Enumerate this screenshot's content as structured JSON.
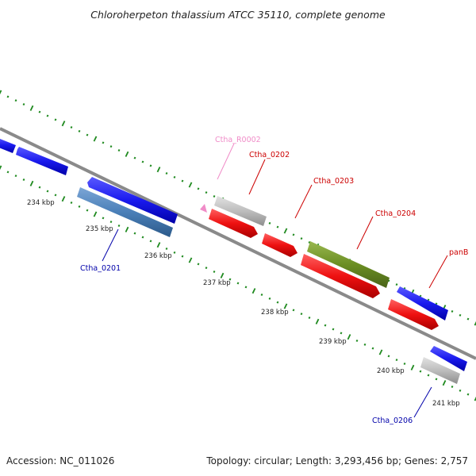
{
  "title": "Chloroherpeton thalassium ATCC 35110, complete genome",
  "footer": {
    "accession": "Accession: NC_011026",
    "summary": "Topology: circular; Length: 3,293,456 bp; Genes: 2,757"
  },
  "colors": {
    "backbone": "#8a8a8a",
    "tick_dots": "#1f8a1f",
    "blue": "#1a1aee",
    "steel_blue": "#4a7fb8",
    "red": "#ee1111",
    "olive": "#6b8e23",
    "gray_gene": "#bdbdbd",
    "pink": "#f08cc8",
    "label_red": "#cc0000",
    "label_blue": "#0000aa",
    "label_pink": "#f08cc8"
  },
  "scale_ticks": [
    "234 kbp",
    "235 kbp",
    "236 kbp",
    "237 kbp",
    "238 kbp",
    "239 kbp",
    "240 kbp",
    "241 kbp"
  ],
  "gene_labels": [
    {
      "text": "Ctha_R0002",
      "color": "label_pink"
    },
    {
      "text": "Ctha_0202",
      "color": "label_red"
    },
    {
      "text": "Ctha_0203",
      "color": "label_red"
    },
    {
      "text": "Ctha_0204",
      "color": "label_red"
    },
    {
      "text": "panB",
      "color": "label_red"
    },
    {
      "text": "Ctha_0201",
      "color": "label_blue"
    },
    {
      "text": "Ctha_0206",
      "color": "label_blue"
    }
  ]
}
